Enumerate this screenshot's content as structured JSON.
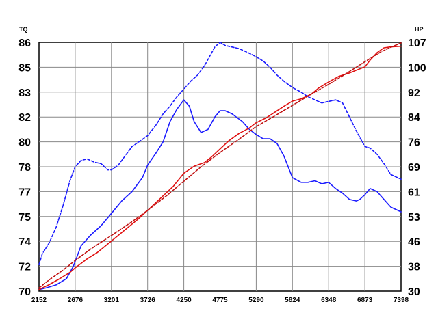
{
  "chart_data": {
    "type": "line",
    "y_left_label": "TQ",
    "y_right_label": "HP",
    "x_ticks": [
      "2152",
      "2676",
      "3201",
      "3726",
      "4250",
      "4775",
      "5290",
      "5824",
      "6348",
      "6873",
      "7398"
    ],
    "y_left_ticks": [
      "70",
      "72",
      "74",
      "75",
      "77",
      "78",
      "80",
      "82",
      "83",
      "85",
      "86"
    ],
    "y_right_ticks": [
      "30",
      "38",
      "46",
      "53",
      "61",
      "69",
      "76",
      "84",
      "92",
      "100",
      "107"
    ],
    "xlim": [
      2152,
      7398
    ],
    "ylim_left": [
      70,
      86
    ],
    "ylim_right": [
      30,
      107
    ],
    "grid": true,
    "series": [
      {
        "axis": "left",
        "color": "#1a1aff",
        "style": "solid",
        "x": [
          2152,
          2250,
          2400,
          2550,
          2650,
          2760,
          2900,
          3050,
          3201,
          3350,
          3500,
          3650,
          3726,
          3850,
          3950,
          4050,
          4150,
          4250,
          4330,
          4400,
          4500,
          4600,
          4700,
          4775,
          4850,
          4950,
          5100,
          5200,
          5290,
          5400,
          5500,
          5600,
          5700,
          5824,
          5950,
          6050,
          6150,
          6250,
          6348,
          6450,
          6550,
          6650,
          6750,
          6800,
          6873,
          6950,
          7050,
          7150,
          7250,
          7398
        ],
        "y": [
          70.1,
          70.2,
          70.4,
          70.8,
          71.6,
          72.9,
          73.6,
          74.2,
          75.0,
          75.8,
          76.4,
          77.3,
          78.1,
          78.9,
          79.6,
          80.9,
          81.7,
          82.3,
          81.9,
          80.9,
          80.2,
          80.4,
          81.2,
          81.6,
          81.6,
          81.4,
          80.9,
          80.4,
          80.1,
          79.8,
          79.8,
          79.5,
          78.7,
          77.3,
          77.0,
          77.0,
          77.1,
          76.9,
          77.0,
          76.6,
          76.3,
          75.9,
          75.8,
          75.9,
          76.2,
          76.6,
          76.4,
          75.9,
          75.4,
          75.1
        ]
      },
      {
        "axis": "left",
        "color": "#1a1aff",
        "style": "dashed",
        "x": [
          2152,
          2200,
          2300,
          2400,
          2500,
          2600,
          2676,
          2760,
          2850,
          2950,
          3050,
          3150,
          3201,
          3300,
          3400,
          3500,
          3600,
          3726,
          3850,
          3950,
          4050,
          4150,
          4250,
          4350,
          4450,
          4550,
          4650,
          4700,
          4775,
          4850,
          4950,
          5050,
          5150,
          5290,
          5400,
          5500,
          5600,
          5700,
          5824,
          5950,
          6050,
          6150,
          6250,
          6348,
          6450,
          6550,
          6650,
          6750,
          6873,
          6950,
          7050,
          7150,
          7250,
          7398
        ],
        "y": [
          71.7,
          72.4,
          73.1,
          74.1,
          75.5,
          77.1,
          78.0,
          78.4,
          78.5,
          78.3,
          78.2,
          77.8,
          77.8,
          78.1,
          78.7,
          79.3,
          79.6,
          80.0,
          80.7,
          81.4,
          81.9,
          82.5,
          83.0,
          83.5,
          83.9,
          84.5,
          85.3,
          85.7,
          86.0,
          85.8,
          85.7,
          85.6,
          85.4,
          85.1,
          84.8,
          84.4,
          83.9,
          83.5,
          83.1,
          82.8,
          82.5,
          82.3,
          82.1,
          82.2,
          82.3,
          82.1,
          81.2,
          80.3,
          79.3,
          79.2,
          78.8,
          78.2,
          77.5,
          77.2
        ]
      },
      {
        "axis": "right",
        "color": "#e01010",
        "style": "solid",
        "x": [
          2152,
          2300,
          2450,
          2600,
          2676,
          2850,
          3000,
          3201,
          3400,
          3600,
          3726,
          3900,
          4100,
          4250,
          4400,
          4550,
          4650,
          4775,
          4900,
          5050,
          5200,
          5290,
          5450,
          5600,
          5700,
          5824,
          5950,
          6100,
          6200,
          6348,
          6500,
          6650,
          6750,
          6873,
          6950,
          7050,
          7150,
          7250,
          7398
        ],
        "y": [
          30.5,
          32.0,
          33.8,
          35.8,
          37.2,
          40.0,
          42.0,
          45.5,
          49.0,
          52.5,
          55.0,
          58.5,
          62.5,
          66.5,
          68.7,
          69.8,
          71.5,
          74.0,
          76.5,
          78.8,
          80.5,
          82.0,
          83.7,
          85.8,
          87.2,
          88.8,
          89.5,
          91.0,
          92.8,
          94.7,
          96.5,
          97.5,
          98.4,
          99.4,
          101.5,
          103.8,
          105.3,
          105.6,
          105.8
        ]
      },
      {
        "axis": "right",
        "color": "#c01010",
        "style": "dashed",
        "x": [
          2152,
          2300,
          2500,
          2676,
          2900,
          3201,
          3500,
          3726,
          4000,
          4250,
          4500,
          4775,
          5050,
          5290,
          5550,
          5824,
          6100,
          6348,
          6600,
          6873,
          7100,
          7250,
          7398
        ],
        "y": [
          31.0,
          33.5,
          36.5,
          39.5,
          43.0,
          47.2,
          51.5,
          55.0,
          59.5,
          64.0,
          68.5,
          72.9,
          77.0,
          80.8,
          84.0,
          87.5,
          91.0,
          94.0,
          97.3,
          101.0,
          104.0,
          105.5,
          106.8
        ]
      }
    ]
  }
}
